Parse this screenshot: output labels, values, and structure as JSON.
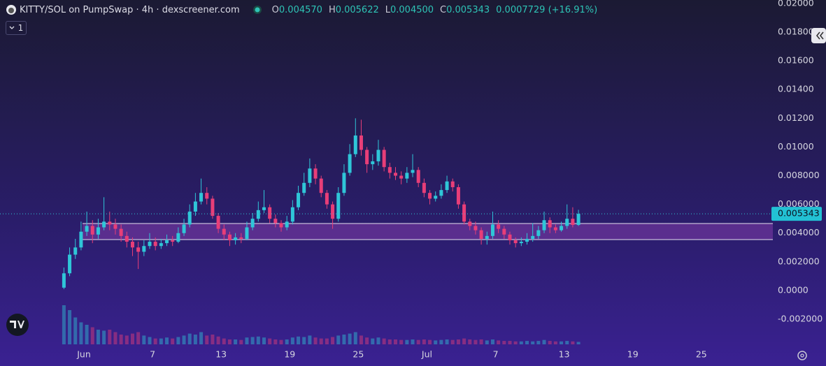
{
  "header": {
    "title": "KITTY/SOL on PumpSwap · 4h · dexscreener.com",
    "open_key": "O",
    "open": "0.004570",
    "high_key": "H",
    "high": "0.005622",
    "low_key": "L",
    "low": "0.004500",
    "close_key": "C",
    "close": "0.005343",
    "change": "0.0007729 (+16.91%)",
    "indicator_count": "1"
  },
  "chart_data": {
    "type": "candlestick",
    "xlim": [
      -7.34,
      60.25
    ],
    "xticks": [
      {
        "value": 0,
        "label": "Jun"
      },
      {
        "value": 6,
        "label": "7"
      },
      {
        "value": 12,
        "label": "13"
      },
      {
        "value": 18,
        "label": "19"
      },
      {
        "value": 24,
        "label": "25"
      },
      {
        "value": 30,
        "label": "Jul"
      },
      {
        "value": 36,
        "label": "7"
      },
      {
        "value": 42,
        "label": "13"
      },
      {
        "value": 48,
        "label": "19"
      },
      {
        "value": 54,
        "label": "25"
      }
    ],
    "ylim": [
      -0.00375,
      0.02024
    ],
    "yticks": [
      {
        "value": 0.02,
        "label": "0.02000"
      },
      {
        "value": 0.018,
        "label": "0.01800"
      },
      {
        "value": 0.016,
        "label": "0.01600"
      },
      {
        "value": 0.014,
        "label": "0.01400"
      },
      {
        "value": 0.012,
        "label": "0.01200"
      },
      {
        "value": 0.01,
        "label": "0.01000"
      },
      {
        "value": 0.008,
        "label": "0.008000"
      },
      {
        "value": 0.006,
        "label": "0.006000"
      },
      {
        "value": 0.004,
        "label": "0.004000"
      },
      {
        "value": 0.002,
        "label": "0.002000"
      },
      {
        "value": 0,
        "label": "0.0000"
      },
      {
        "value": -0.002,
        "label": "-0.002000"
      }
    ],
    "up_color": "#2fc6d8",
    "down_color": "#e83e78",
    "zone": [
      0.00355,
      0.00467
    ],
    "x": [
      -1.75,
      -1.25,
      -0.75,
      -0.25,
      0.25,
      0.75,
      1.25,
      1.75,
      2.25,
      2.75,
      3.25,
      3.75,
      4.25,
      4.75,
      5.25,
      5.75,
      6.25,
      6.75,
      7.25,
      7.75,
      8.25,
      8.75,
      9.25,
      9.75,
      10.25,
      10.75,
      11.25,
      11.75,
      12.25,
      12.75,
      13.25,
      13.75,
      14.25,
      14.75,
      15.25,
      15.75,
      16.25,
      16.75,
      17.25,
      17.75,
      18.25,
      18.75,
      19.25,
      19.75,
      20.25,
      20.75,
      21.25,
      21.75,
      22.25,
      22.75,
      23.25,
      23.75,
      24.25,
      24.75,
      25.25,
      25.75,
      26.25,
      26.75,
      27.25,
      27.75,
      28.25,
      28.75,
      29.25,
      29.75,
      30.25,
      30.75,
      31.25,
      31.75,
      32.25,
      32.75,
      33.25,
      33.75,
      34.25,
      34.75,
      35.25,
      35.75,
      36.25,
      36.75,
      37.25,
      37.75,
      38.25,
      38.75,
      39.25,
      39.75,
      40.25,
      40.75,
      41.25,
      41.75,
      42.25,
      42.75,
      43.25
    ],
    "open": [
      0.0002,
      0.0012,
      0.0025,
      0.003,
      0.0041,
      0.0045,
      0.0039,
      0.0044,
      0.0048,
      0.0046,
      0.0043,
      0.0038,
      0.0034,
      0.003,
      0.0027,
      0.0031,
      0.0034,
      0.0031,
      0.0033,
      0.0035,
      0.0034,
      0.004,
      0.0046,
      0.0055,
      0.0062,
      0.0068,
      0.0064,
      0.0052,
      0.0043,
      0.0039,
      0.0035,
      0.0037,
      0.0036,
      0.0044,
      0.005,
      0.0056,
      0.0058,
      0.005,
      0.0047,
      0.0044,
      0.0048,
      0.0058,
      0.0068,
      0.0075,
      0.0085,
      0.0078,
      0.0068,
      0.006,
      0.005,
      0.0068,
      0.0082,
      0.0095,
      0.0108,
      0.0098,
      0.0088,
      0.009,
      0.0098,
      0.0086,
      0.0082,
      0.008,
      0.0078,
      0.0082,
      0.0084,
      0.0075,
      0.0068,
      0.0064,
      0.0066,
      0.007,
      0.0076,
      0.0072,
      0.006,
      0.0048,
      0.0045,
      0.0042,
      0.0036,
      0.0038,
      0.0046,
      0.0043,
      0.0039,
      0.0035,
      0.0033,
      0.0034,
      0.0036,
      0.0038,
      0.0042,
      0.0049,
      0.0044,
      0.0042,
      0.0045,
      0.005,
      0.00457
    ],
    "high": [
      0.0016,
      0.003,
      0.0036,
      0.0048,
      0.0055,
      0.0049,
      0.005,
      0.0065,
      0.0055,
      0.005,
      0.0046,
      0.0041,
      0.0037,
      0.0034,
      0.0035,
      0.004,
      0.0037,
      0.0036,
      0.0039,
      0.0038,
      0.0044,
      0.005,
      0.006,
      0.0068,
      0.0078,
      0.0072,
      0.0066,
      0.0054,
      0.0046,
      0.0041,
      0.004,
      0.004,
      0.0048,
      0.0054,
      0.0062,
      0.007,
      0.006,
      0.0053,
      0.0049,
      0.0052,
      0.0063,
      0.0073,
      0.0082,
      0.0092,
      0.0088,
      0.008,
      0.007,
      0.0062,
      0.0072,
      0.0088,
      0.0102,
      0.012,
      0.0119,
      0.01,
      0.0095,
      0.0105,
      0.01,
      0.0089,
      0.0086,
      0.0083,
      0.0086,
      0.0095,
      0.0086,
      0.0078,
      0.007,
      0.0069,
      0.0074,
      0.008,
      0.0078,
      0.0074,
      0.0062,
      0.005,
      0.0048,
      0.0044,
      0.0041,
      0.0055,
      0.0049,
      0.0045,
      0.0041,
      0.0037,
      0.0037,
      0.004,
      0.0047,
      0.0045,
      0.0055,
      0.0051,
      0.0046,
      0.0048,
      0.006,
      0.0058,
      0.005622
    ],
    "low": [
      0.0001,
      0.001,
      0.0022,
      0.0028,
      0.0038,
      0.0033,
      0.0036,
      0.0042,
      0.0042,
      0.0039,
      0.0034,
      0.003,
      0.0024,
      0.0015,
      0.0024,
      0.0029,
      0.0028,
      0.0029,
      0.0031,
      0.0031,
      0.0033,
      0.0038,
      0.0044,
      0.0052,
      0.006,
      0.006,
      0.005,
      0.004,
      0.0035,
      0.0031,
      0.0032,
      0.0033,
      0.0035,
      0.0042,
      0.0048,
      0.0054,
      0.0047,
      0.0044,
      0.0041,
      0.0042,
      0.0046,
      0.0056,
      0.0066,
      0.0072,
      0.0074,
      0.0065,
      0.0057,
      0.0043,
      0.0048,
      0.0066,
      0.008,
      0.0093,
      0.0094,
      0.0082,
      0.0084,
      0.0087,
      0.0083,
      0.0078,
      0.0077,
      0.0074,
      0.0075,
      0.0079,
      0.0072,
      0.0065,
      0.006,
      0.0062,
      0.0064,
      0.0068,
      0.0069,
      0.0057,
      0.0046,
      0.0042,
      0.0039,
      0.0032,
      0.0032,
      0.0036,
      0.004,
      0.0036,
      0.0032,
      0.003,
      0.0031,
      0.0032,
      0.0034,
      0.0036,
      0.004,
      0.004,
      0.004,
      0.0041,
      0.0043,
      0.0044,
      0.0045
    ],
    "close": [
      0.0012,
      0.0025,
      0.003,
      0.0041,
      0.0045,
      0.0039,
      0.0044,
      0.0048,
      0.0046,
      0.0043,
      0.0038,
      0.0034,
      0.003,
      0.0027,
      0.0031,
      0.0034,
      0.0031,
      0.0033,
      0.0035,
      0.0034,
      0.004,
      0.0046,
      0.0055,
      0.0062,
      0.0068,
      0.0064,
      0.0052,
      0.0043,
      0.0039,
      0.0035,
      0.0037,
      0.0036,
      0.0044,
      0.005,
      0.0056,
      0.0058,
      0.005,
      0.0047,
      0.0044,
      0.0048,
      0.0058,
      0.0068,
      0.0075,
      0.0085,
      0.0078,
      0.0068,
      0.006,
      0.005,
      0.0068,
      0.0082,
      0.0095,
      0.0108,
      0.0098,
      0.0088,
      0.009,
      0.0098,
      0.0086,
      0.0082,
      0.008,
      0.0078,
      0.0082,
      0.0084,
      0.0075,
      0.0068,
      0.0064,
      0.0066,
      0.007,
      0.0076,
      0.0072,
      0.006,
      0.0048,
      0.0045,
      0.0042,
      0.0036,
      0.0038,
      0.0046,
      0.0043,
      0.0039,
      0.0035,
      0.0033,
      0.0034,
      0.0036,
      0.0038,
      0.0042,
      0.0049,
      0.0044,
      0.0042,
      0.0045,
      0.005,
      0.00457,
      0.005343
    ],
    "volume": [
      80,
      70,
      55,
      45,
      40,
      35,
      30,
      28,
      30,
      25,
      20,
      18,
      22,
      25,
      18,
      15,
      12,
      12,
      14,
      12,
      15,
      18,
      22,
      20,
      25,
      18,
      20,
      16,
      12,
      10,
      10,
      9,
      14,
      15,
      16,
      14,
      12,
      10,
      9,
      10,
      14,
      16,
      15,
      18,
      14,
      12,
      12,
      15,
      18,
      20,
      22,
      25,
      18,
      14,
      12,
      14,
      12,
      10,
      10,
      9,
      9,
      10,
      9,
      10,
      9,
      8,
      9,
      10,
      9,
      10,
      12,
      10,
      9,
      10,
      8,
      10,
      8,
      7,
      7,
      6,
      6,
      7,
      6,
      7,
      9,
      7,
      6,
      6,
      7,
      6,
      5
    ]
  }
}
